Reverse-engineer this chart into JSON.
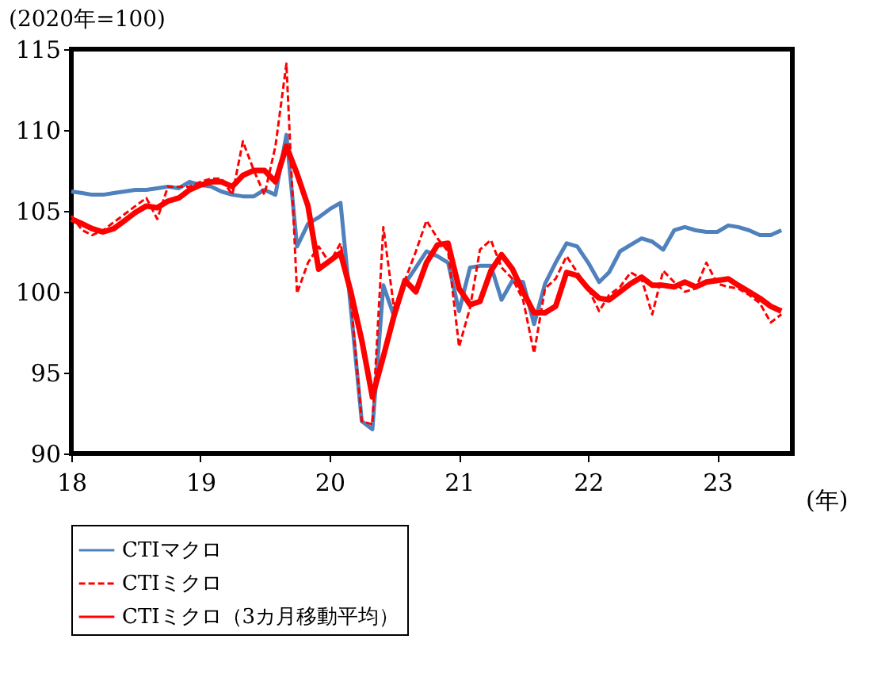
{
  "chart_data": {
    "type": "line",
    "ylabel": "(2020年=100)",
    "xlabel": "(年)",
    "x": [
      "2018-01",
      "2018-02",
      "2018-03",
      "2018-04",
      "2018-05",
      "2018-06",
      "2018-07",
      "2018-08",
      "2018-09",
      "2018-10",
      "2018-11",
      "2018-12",
      "2019-01",
      "2019-02",
      "2019-03",
      "2019-04",
      "2019-05",
      "2019-06",
      "2019-07",
      "2019-08",
      "2019-09",
      "2019-10",
      "2019-11",
      "2019-12",
      "2020-01",
      "2020-02",
      "2020-03",
      "2020-04",
      "2020-05",
      "2020-06",
      "2020-07",
      "2020-08",
      "2020-09",
      "2020-10",
      "2020-11",
      "2020-12",
      "2021-01",
      "2021-02",
      "2021-03",
      "2021-04",
      "2021-05",
      "2021-06",
      "2021-07",
      "2021-08",
      "2021-09",
      "2021-10",
      "2021-11",
      "2021-12",
      "2022-01",
      "2022-02",
      "2022-03",
      "2022-04",
      "2022-05",
      "2022-06",
      "2022-07",
      "2022-08",
      "2022-09",
      "2022-10",
      "2022-11",
      "2022-12",
      "2023-01",
      "2023-02",
      "2023-03",
      "2023-04",
      "2023-05",
      "2023-06",
      "2023-07"
    ],
    "series": [
      {
        "name": "CTIマクロ",
        "color": "#4f81bd",
        "line_style": "solid",
        "values": [
          106.2,
          106.1,
          106.0,
          106.0,
          106.1,
          106.2,
          106.3,
          106.3,
          106.4,
          106.5,
          106.4,
          106.8,
          106.6,
          106.5,
          106.2,
          106.0,
          105.9,
          105.9,
          106.3,
          106.0,
          109.7,
          102.8,
          104.2,
          104.6,
          105.1,
          105.5,
          99.0,
          92.0,
          91.5,
          100.4,
          98.5,
          100.5,
          101.5,
          102.5,
          102.2,
          101.8,
          98.8,
          101.5,
          101.6,
          101.6,
          99.5,
          100.7,
          100.6,
          98.0,
          100.5,
          101.8,
          103.0,
          102.8,
          101.8,
          100.6,
          101.2,
          102.5,
          102.9,
          103.3,
          103.1,
          102.6,
          103.8,
          104.0,
          103.8,
          103.7,
          103.7,
          104.1,
          104.0,
          103.8,
          103.5,
          103.5,
          103.8
        ]
      },
      {
        "name": "CTIミクロ",
        "color": "#ff0000",
        "line_style": "dashed",
        "values": [
          104.7,
          103.8,
          103.5,
          103.8,
          104.3,
          104.8,
          105.3,
          105.8,
          104.5,
          106.5,
          106.5,
          106.5,
          106.8,
          107.0,
          107.0,
          106.0,
          109.3,
          107.5,
          106.0,
          109.0,
          114.1,
          99.9,
          101.8,
          102.8,
          101.8,
          103.0,
          99.5,
          92.0,
          91.8,
          104.0,
          99.0,
          100.7,
          102.5,
          104.4,
          103.3,
          102.5,
          96.6,
          99.0,
          102.6,
          103.2,
          101.5,
          100.8,
          99.5,
          96.2,
          100.2,
          100.8,
          102.2,
          101.2,
          100.2,
          98.8,
          99.8,
          100.3,
          101.2,
          100.8,
          98.6,
          101.3,
          100.6,
          100.0,
          100.2,
          101.8,
          100.5,
          100.3,
          100.2,
          99.8,
          99.3,
          98.1,
          98.6
        ]
      },
      {
        "name": "CTIミクロ（3カ月移動平均）",
        "color": "#ff0000",
        "line_style": "solid",
        "values": [
          104.5,
          104.2,
          103.9,
          103.7,
          103.9,
          104.4,
          104.9,
          105.3,
          105.2,
          105.6,
          105.8,
          106.3,
          106.6,
          106.8,
          106.8,
          106.5,
          107.2,
          107.5,
          107.5,
          106.8,
          109.0,
          107.3,
          105.3,
          101.4,
          101.9,
          102.4,
          100.0,
          97.0,
          93.5,
          96.0,
          98.5,
          100.7,
          100.0,
          101.8,
          102.9,
          103.0,
          100.2,
          99.2,
          99.4,
          101.3,
          102.3,
          101.4,
          100.0,
          98.7,
          98.7,
          99.1,
          101.2,
          101.0,
          100.2,
          99.6,
          99.5,
          100.0,
          100.5,
          100.9,
          100.4,
          100.4,
          100.3,
          100.6,
          100.3,
          100.6,
          100.7,
          100.8,
          100.4,
          100.0,
          99.6,
          99.1,
          98.8
        ]
      }
    ],
    "xlim": [
      "2018-01",
      "2023-08"
    ],
    "xticks": [
      {
        "value": "2018-01",
        "label": "18"
      },
      {
        "value": "2019-01",
        "label": "19"
      },
      {
        "value": "2020-01",
        "label": "20"
      },
      {
        "value": "2021-01",
        "label": "21"
      },
      {
        "value": "2022-01",
        "label": "22"
      },
      {
        "value": "2023-01",
        "label": "23"
      }
    ],
    "ylim": [
      90,
      115
    ],
    "yticks": [
      90,
      95,
      100,
      105,
      110,
      115
    ],
    "grid": false,
    "legend": "bottom"
  }
}
